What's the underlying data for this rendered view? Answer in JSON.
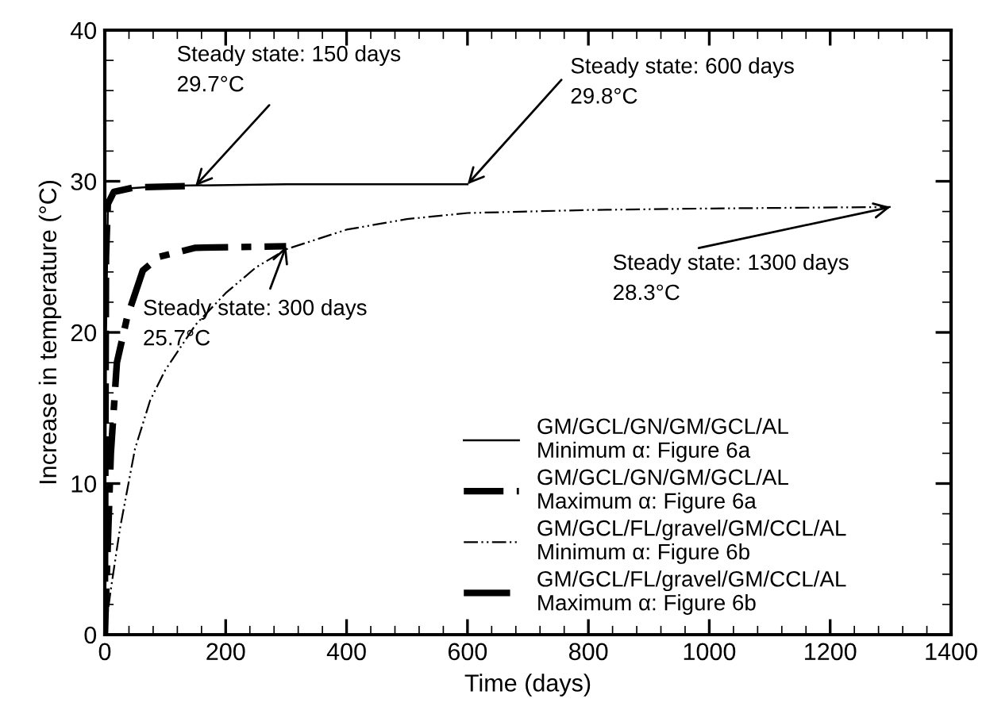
{
  "chart_data": {
    "type": "line",
    "xlabel": "Time (days)",
    "ylabel": "Increase in temperature (°C)",
    "xlim": [
      0,
      1400
    ],
    "xticks": [
      0,
      200,
      400,
      600,
      800,
      1000,
      1200,
      1400
    ],
    "ylim": [
      0,
      40
    ],
    "yticks": [
      0,
      10,
      20,
      30,
      40
    ],
    "grid": false,
    "legend": "bottom right",
    "marker": "none",
    "series": [
      {
        "name": "GM/GCL/GN/GM/GCL/AL\nMinimum α: Figure 6a",
        "color": "#000000",
        "line_style": "solid",
        "x": [
          0,
          2,
          5,
          10,
          30,
          100,
          300,
          600
        ],
        "values": [
          0,
          20,
          28,
          29.2,
          29.5,
          29.7,
          29.8,
          29.8
        ]
      },
      {
        "name": "GM/GCL/GN/GM/GCL/AL\nMaximum α: Figure 6a",
        "color": "#000000",
        "line_style": "dashed",
        "x": [
          0,
          2,
          5,
          15,
          50,
          150
        ],
        "values": [
          0,
          25,
          28.5,
          29.3,
          29.6,
          29.7
        ]
      },
      {
        "name": "GM/GCL/FL/gravel/GM/CCL/AL\nMinimum α: Figure 6b",
        "color": "#000000",
        "line_style": "dashdotdot",
        "x": [
          0,
          10,
          25,
          50,
          75,
          100,
          150,
          200,
          250,
          300,
          400,
          500,
          600,
          800,
          1000,
          1300
        ],
        "values": [
          0,
          3,
          7,
          12.3,
          15.5,
          17.5,
          20.5,
          22.6,
          24.3,
          25.5,
          26.8,
          27.5,
          27.9,
          28.1,
          28.2,
          28.3
        ]
      },
      {
        "name": "GM/GCL/FL/gravel/GM/CCL/AL\nMaximum α: Figure 6b",
        "color": "#000000",
        "line_style": "dashdot",
        "x": [
          0,
          5,
          10,
          20,
          37,
          63,
          90,
          150,
          300
        ],
        "values": [
          0,
          6,
          12,
          18,
          21,
          24.1,
          25,
          25.6,
          25.7
        ]
      }
    ],
    "annotations": [
      {
        "text": "Steady state: 150 days\n29.7°C",
        "x": 150,
        "y": 29.7
      },
      {
        "text": "Steady state: 600 days\n29.8°C",
        "x": 600,
        "y": 29.8
      },
      {
        "text": "Steady state: 300 days\n25.7°C",
        "x": 300,
        "y": 25.7
      },
      {
        "text": "Steady state: 1300 days\n28.3°C",
        "x": 1300,
        "y": 28.3
      }
    ]
  }
}
